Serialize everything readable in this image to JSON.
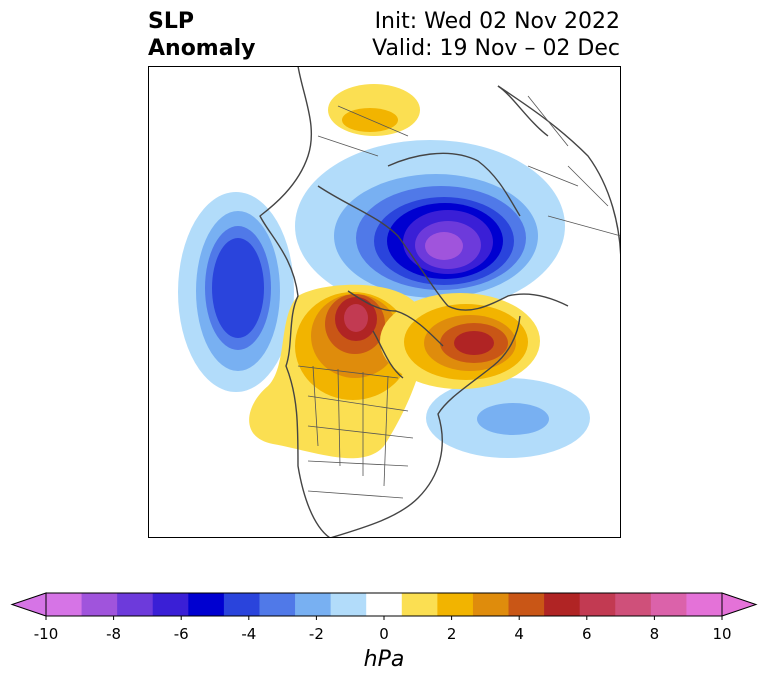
{
  "title": {
    "left_line1": "SLP",
    "left_line2": "Anomaly",
    "right_line1": "Init: Wed 02 Nov 2022",
    "right_line2": "Valid: 19 Nov – 02 Dec"
  },
  "colorbar": {
    "unit": "hPa",
    "ticks": [
      "-10",
      "-8",
      "-6",
      "-4",
      "-2",
      "0",
      "2",
      "4",
      "6",
      "8",
      "10"
    ],
    "colors": [
      "#d674e6",
      "#a054dc",
      "#6d3adb",
      "#3a1fd6",
      "#0000d0",
      "#2a44dc",
      "#5079e8",
      "#78b0f2",
      "#b2dcfa",
      "#ffffff",
      "#fbdf52",
      "#f2b400",
      "#df8c0c",
      "#c95616",
      "#b02424",
      "#c23a52",
      "#cf507a",
      "#db62aa",
      "#e472d8"
    ],
    "extend_low_color": "#d674e6",
    "extend_high_color": "#e472d8"
  },
  "map": {
    "projection": "polar-stereographic",
    "variable": "SLP Anomaly",
    "anomaly_centers": [
      {
        "name": "arctic-low",
        "sign": "negative",
        "min_hpa": -9
      },
      {
        "name": "north-pacific-low",
        "sign": "negative",
        "min_hpa": -5
      },
      {
        "name": "canada-high",
        "sign": "positive",
        "max_hpa": 7
      },
      {
        "name": "north-atlantic-high",
        "sign": "positive",
        "max_hpa": 6
      },
      {
        "name": "ural-high",
        "sign": "positive",
        "max_hpa": 2
      },
      {
        "name": "atlantic-low",
        "sign": "negative",
        "min_hpa": -3
      }
    ]
  }
}
